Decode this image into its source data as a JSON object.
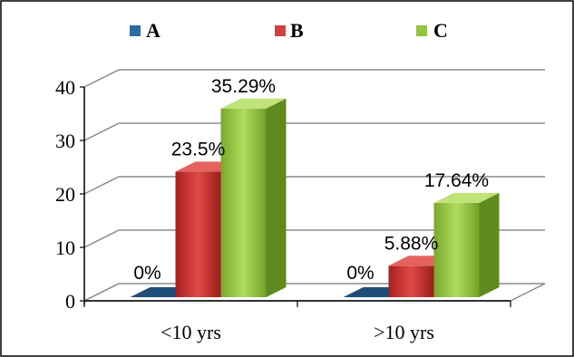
{
  "chart_data": {
    "type": "bar",
    "categories": [
      "<10 yrs",
      ">10 yrs"
    ],
    "series": [
      {
        "name": "A",
        "values": [
          0,
          0
        ],
        "labels": [
          "0%",
          "0%"
        ],
        "color": "#1f4e79"
      },
      {
        "name": "B",
        "values": [
          23.5,
          5.88
        ],
        "labels": [
          "23.5%",
          "5.88%"
        ],
        "color": "#c0302e"
      },
      {
        "name": "C",
        "values": [
          35.29,
          17.64
        ],
        "labels": [
          "35.29%",
          "17.64%"
        ],
        "color": "#92c43d"
      }
    ],
    "yticks": [
      "0",
      "10",
      "20",
      "30",
      "40"
    ],
    "ylim": [
      0,
      40
    ],
    "grid": true,
    "legend_position": "top",
    "style": "3d-column"
  }
}
